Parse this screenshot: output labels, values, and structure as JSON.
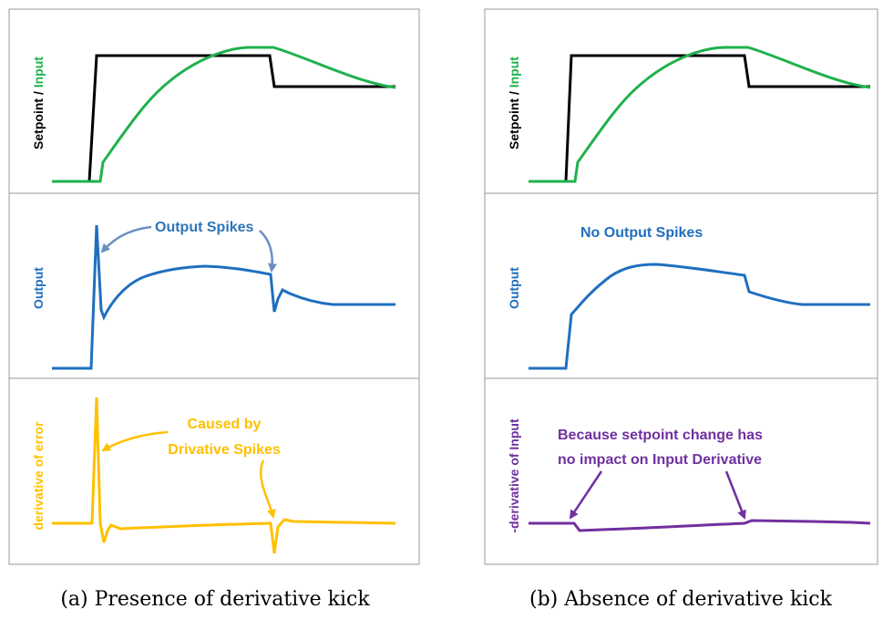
{
  "colors": {
    "setpoint": "#000000",
    "input": "#1fb14b",
    "output": "#1f6fbf",
    "derivative_error": "#ffc000",
    "derivative_input": "#7030a0",
    "annotation_blue": "#2e75b6",
    "annotation_purple": "#7030a0",
    "arrow_blue": "#6b8fc2",
    "panel_border": "#9a9a9a"
  },
  "captions": {
    "left": "(a) Presence of derivative kick",
    "right": "(b) Absence of derivative kick"
  },
  "left_panel": {
    "ylabel_top_part1": "Setpoint / ",
    "ylabel_top_part2": "Input",
    "ylabel_mid": "Output",
    "ylabel_bot": "derivative of error",
    "annotation_mid": "Output Spikes",
    "annotation_bot_line1": "Caused by",
    "annotation_bot_line2": "Drivative Spikes"
  },
  "right_panel": {
    "ylabel_top_part1": "Setpoint / ",
    "ylabel_top_part2": "Input",
    "ylabel_mid": "Output",
    "ylabel_bot": "-derivative of Input",
    "annotation_mid": "No Output Spikes",
    "annotation_bot_line1": "Because setpoint change has",
    "annotation_bot_line2": "no impact on Input Derivative"
  },
  "chart_data": [
    {
      "type": "line",
      "x": [
        0,
        0.1,
        0.2,
        0.3,
        0.4,
        0.5,
        0.6,
        0.7,
        0.8,
        0.9,
        1
      ],
      "series": [
        {
          "name": "Setpoint",
          "values": [
            0,
            1,
            1,
            1,
            1,
            1,
            1,
            1,
            0.75,
            0.75,
            0.75
          ]
        },
        {
          "name": "Input",
          "values": [
            0,
            0.12,
            0.45,
            0.7,
            0.88,
            1.0,
            1.07,
            1.08,
            1.0,
            0.85,
            0.75
          ]
        },
        {
          "name": "Output",
          "values": [
            0,
            0.4,
            0.5,
            0.58,
            0.61,
            0.62,
            0.6,
            0.58,
            0.44,
            0.42,
            0.42
          ]
        },
        {
          "name": "derivative of error",
          "values": [
            0,
            1.0,
            -0.05,
            0,
            0.01,
            0.02,
            0.03,
            0.03,
            -0.25,
            0,
            0
          ]
        }
      ]
    },
    {
      "type": "line",
      "x": [
        0,
        0.1,
        0.2,
        0.3,
        0.4,
        0.5,
        0.6,
        0.7,
        0.8,
        0.9,
        1
      ],
      "series": [
        {
          "name": "Setpoint",
          "values": [
            0,
            1,
            1,
            1,
            1,
            1,
            1,
            1,
            0.75,
            0.75,
            0.75
          ]
        },
        {
          "name": "Input",
          "values": [
            0,
            0.12,
            0.45,
            0.7,
            0.88,
            1.0,
            1.07,
            1.08,
            1.0,
            0.85,
            0.75
          ]
        },
        {
          "name": "Output",
          "values": [
            0,
            0.55,
            0.58,
            0.61,
            0.62,
            0.61,
            0.59,
            0.57,
            0.43,
            0.42,
            0.42
          ]
        },
        {
          "name": "-derivative of Input",
          "values": [
            0,
            -0.08,
            -0.06,
            -0.04,
            -0.03,
            -0.02,
            -0.01,
            0,
            0.02,
            0.02,
            0.02
          ]
        }
      ]
    }
  ]
}
